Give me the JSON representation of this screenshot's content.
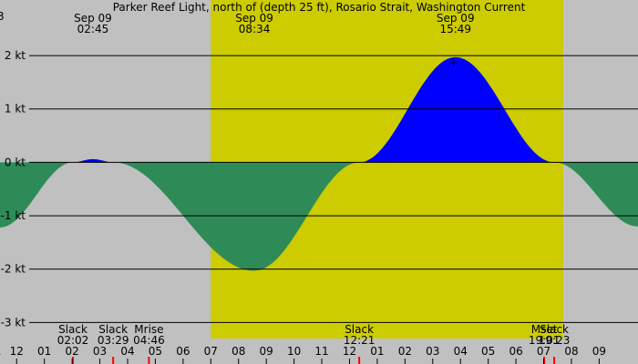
{
  "chart_data": {
    "type": "area",
    "title": "Parker Reef Light, north of (depth 25 ft), Rosario Strait, Washington Current",
    "title_prefix": "3",
    "ylim": [
      -3.3,
      2.7
    ],
    "xlim_hours": [
      -0.6,
      22.4
    ],
    "y_ticks": [
      {
        "value": 2,
        "label": "2 kt"
      },
      {
        "value": 1,
        "label": "1 kt"
      },
      {
        "value": 0,
        "label": "0 kt"
      },
      {
        "value": -1,
        "label": "-1 kt"
      },
      {
        "value": -2,
        "label": "-2 kt"
      },
      {
        "value": -3,
        "label": "-3 kt"
      }
    ],
    "x_ticks": [
      {
        "hour": -0.8,
        "label": "11"
      },
      {
        "hour": 0,
        "label": "12"
      },
      {
        "hour": 1,
        "label": "01"
      },
      {
        "hour": 2,
        "label": "02"
      },
      {
        "hour": 3,
        "label": "03"
      },
      {
        "hour": 4,
        "label": "04"
      },
      {
        "hour": 5,
        "label": "05"
      },
      {
        "hour": 6,
        "label": "06"
      },
      {
        "hour": 7,
        "label": "07"
      },
      {
        "hour": 8,
        "label": "08"
      },
      {
        "hour": 9,
        "label": "09"
      },
      {
        "hour": 10,
        "label": "10"
      },
      {
        "hour": 11,
        "label": "11"
      },
      {
        "hour": 12,
        "label": "12"
      },
      {
        "hour": 13,
        "label": "01"
      },
      {
        "hour": 14,
        "label": "02"
      },
      {
        "hour": 15,
        "label": "03"
      },
      {
        "hour": 16,
        "label": "04"
      },
      {
        "hour": 17,
        "label": "05"
      },
      {
        "hour": 18,
        "label": "06"
      },
      {
        "hour": 19,
        "label": "07"
      },
      {
        "hour": 20,
        "label": "08"
      },
      {
        "hour": 21,
        "label": "09"
      }
    ],
    "daylight_hours": [
      7.0,
      19.7
    ],
    "curve_points": [
      {
        "hour": -0.6,
        "knots": -1.22
      },
      {
        "hour": 2.03,
        "knots": 0.0
      },
      {
        "hour": 2.75,
        "knots": 0.06
      },
      {
        "hour": 3.48,
        "knots": 0.0
      },
      {
        "hour": 8.57,
        "knots": -2.03
      },
      {
        "hour": 12.35,
        "knots": 0.0
      },
      {
        "hour": 15.82,
        "knots": 1.97
      },
      {
        "hour": 19.38,
        "knots": 0.0
      },
      {
        "hour": 22.4,
        "knots": -1.2
      }
    ],
    "top_labels": [
      {
        "hour": 2.75,
        "date": "Sep 09",
        "time": "02:45"
      },
      {
        "hour": 8.57,
        "date": "Sep 09",
        "time": "08:34"
      },
      {
        "hour": 15.82,
        "date": "Sep 09",
        "time": "15:49"
      }
    ],
    "events": [
      {
        "hour": 2.03,
        "name": "Slack",
        "time": "02:02",
        "color": "#ff0000"
      },
      {
        "hour": 3.48,
        "name": "Slack",
        "time": "03:29",
        "color": "#ff0000"
      },
      {
        "hour": 4.77,
        "name": "Mrise",
        "time": "04:46",
        "color": "#ff0000"
      },
      {
        "hour": 12.35,
        "name": "Slack",
        "time": "12:21",
        "color": "#ff0000"
      },
      {
        "hour": 19.02,
        "name": "Mset",
        "time": "19:01",
        "color": "#ff0000"
      },
      {
        "hour": 19.38,
        "name": "Slack",
        "time": "19:23",
        "color": "#ff0000"
      }
    ],
    "peak_marker": {
      "hour": 15.82,
      "knots": 1.97,
      "symbol": "+"
    },
    "colors": {
      "night": "#c0c0c0",
      "day": "#cccc00",
      "flood": "#0000ff",
      "ebb": "#2e8b57",
      "grid": "#000000"
    }
  }
}
